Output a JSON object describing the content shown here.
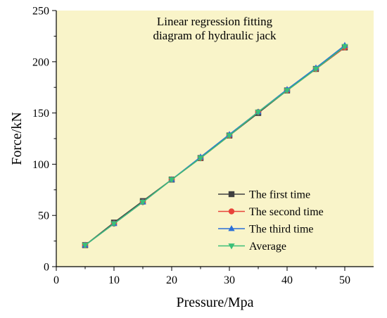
{
  "colors": {
    "plot_background": "#f9f4c9",
    "page_background": "#ffffff",
    "axis": "#000000"
  },
  "chart_data": {
    "type": "line",
    "title_lines": [
      "Linear regression fitting",
      "diagram of hydraulic jack"
    ],
    "xlabel": "Pressure/Mpa",
    "ylabel": "Force/kN",
    "xlim": [
      0,
      55
    ],
    "ylim": [
      0,
      250
    ],
    "x_ticks": [
      0,
      10,
      20,
      30,
      40,
      50
    ],
    "y_ticks": [
      0,
      50,
      100,
      150,
      200,
      250
    ],
    "grid": false,
    "legend_position": "bottom-right",
    "x": [
      5,
      10,
      15,
      20,
      25,
      30,
      35,
      40,
      45,
      50
    ],
    "series": [
      {
        "name": "The first time",
        "color": "#404040",
        "marker": "square",
        "values": [
          21,
          43,
          64,
          85,
          106,
          128,
          150,
          172,
          193,
          214
        ]
      },
      {
        "name": "The second time",
        "color": "#e8443a",
        "marker": "circle",
        "values": [
          21,
          42,
          63,
          85,
          106,
          128,
          151,
          172,
          193,
          214
        ]
      },
      {
        "name": "The third time",
        "color": "#2a6fd8",
        "marker": "triangle-up",
        "values": [
          21,
          42,
          63,
          85,
          107,
          129,
          151,
          173,
          194,
          216
        ]
      },
      {
        "name": "Average",
        "color": "#3cbf78",
        "marker": "triangle-down",
        "values": [
          21,
          42,
          63,
          85,
          106,
          128,
          151,
          172,
          193,
          215
        ]
      }
    ]
  }
}
